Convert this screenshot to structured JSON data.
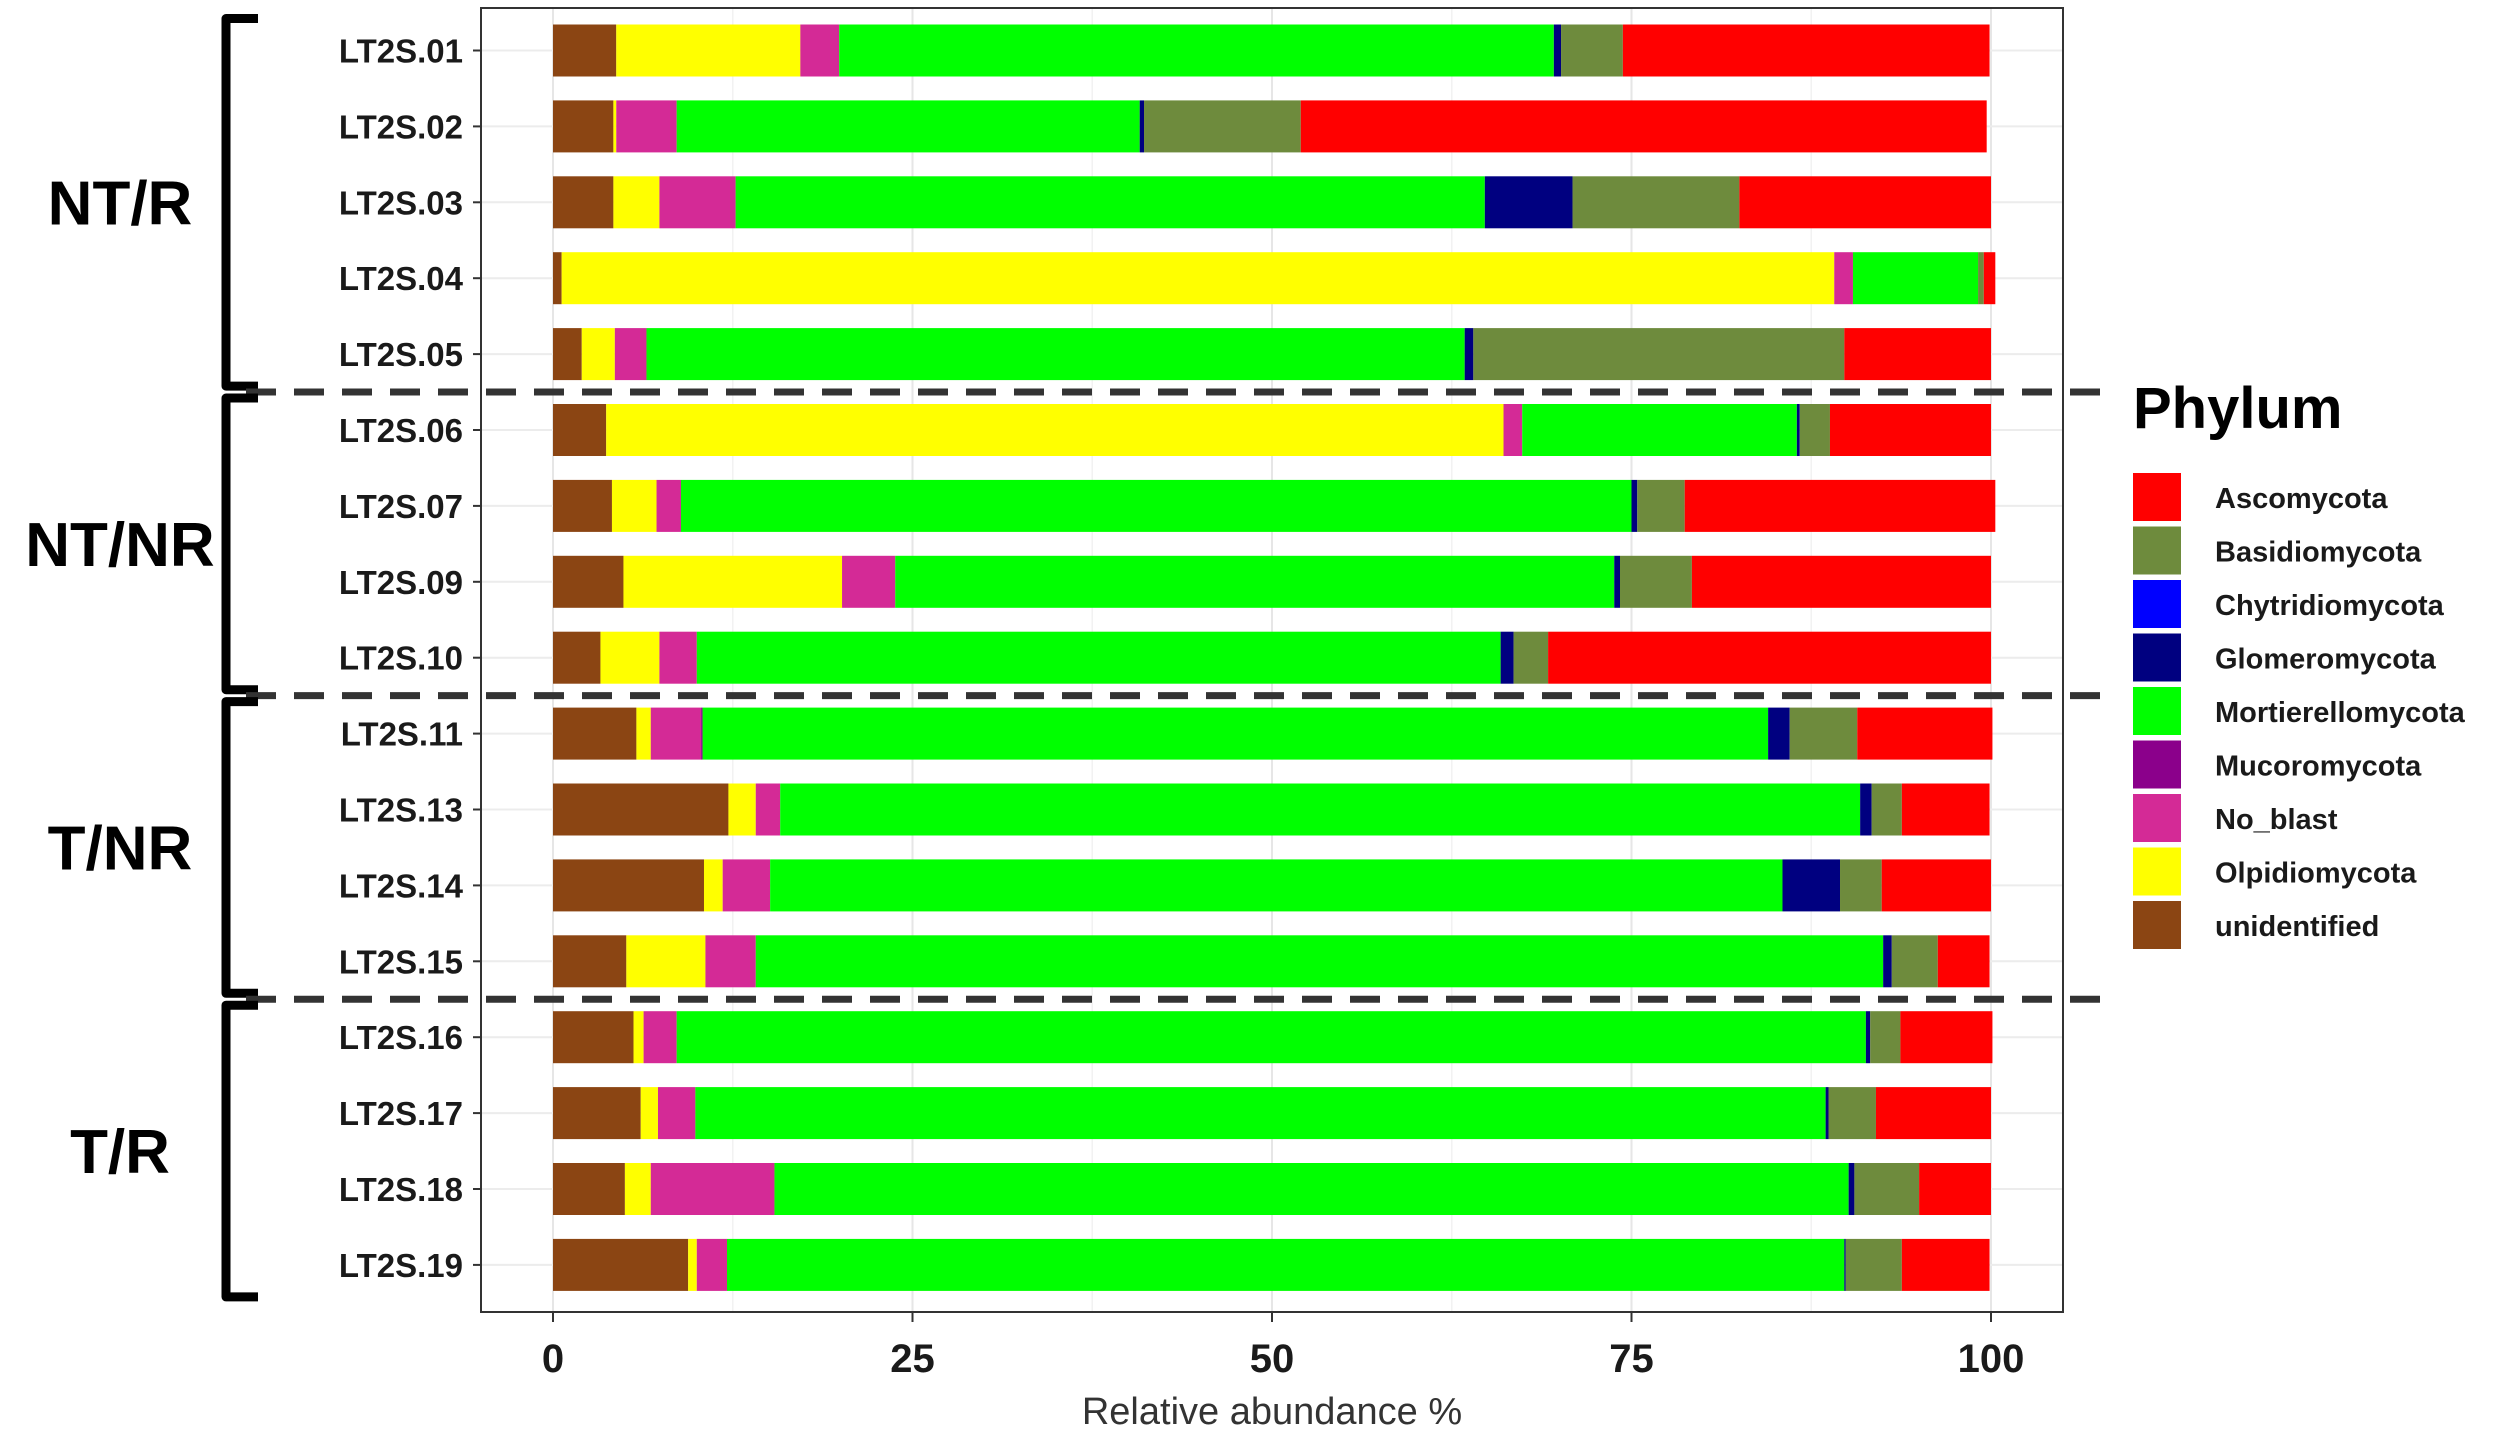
{
  "chart_data": {
    "type": "bar",
    "orientation": "horizontal",
    "stacked": true,
    "title": "",
    "xlabel": "Relative abundance %",
    "ylabel": "",
    "xlim": [
      0,
      100
    ],
    "xticks": [
      "0",
      "25",
      "50",
      "75",
      "100"
    ],
    "grid": true,
    "legend_position": "right",
    "legend_title": "Phylum",
    "categories": [
      "LT2S.01",
      "LT2S.02",
      "LT2S.03",
      "LT2S.04",
      "LT2S.05",
      "LT2S.06",
      "LT2S.07",
      "LT2S.09",
      "LT2S.10",
      "LT2S.11",
      "LT2S.13",
      "LT2S.14",
      "LT2S.15",
      "LT2S.16",
      "LT2S.17",
      "LT2S.18",
      "LT2S.19"
    ],
    "groups": [
      {
        "label": "NT/R",
        "members": [
          "LT2S.01",
          "LT2S.02",
          "LT2S.03",
          "LT2S.04",
          "LT2S.05"
        ]
      },
      {
        "label": "NT/NR",
        "members": [
          "LT2S.06",
          "LT2S.07",
          "LT2S.09",
          "LT2S.10"
        ]
      },
      {
        "label": "T/NR",
        "members": [
          "LT2S.11",
          "LT2S.13",
          "LT2S.14",
          "LT2S.15"
        ]
      },
      {
        "label": "T/R",
        "members": [
          "LT2S.16",
          "LT2S.17",
          "LT2S.18",
          "LT2S.19"
        ]
      }
    ],
    "stack_order": [
      "unidentified",
      "Olpidiomycota",
      "No_blast",
      "Mucoromycota",
      "Mortierellomycota",
      "Glomeromycota",
      "Chytridiomycota",
      "Basidiomycota",
      "Ascomycota"
    ],
    "legend_order": [
      "Ascomycota",
      "Basidiomycota",
      "Chytridiomycota",
      "Glomeromycota",
      "Mortierellomycota",
      "Mucoromycota",
      "No_blast",
      "Olpidiomycota",
      "unidentified"
    ],
    "colors": {
      "Ascomycota": "#FF0000",
      "Basidiomycota": "#6E8B3D",
      "Chytridiomycota": "#0000FF",
      "Glomeromycota": "#000080",
      "Mortierellomycota": "#00FF00",
      "Mucoromycota": "#8B008B",
      "No_blast": "#D42A96",
      "Olpidiomycota": "#FFFF00",
      "unidentified": "#8B4513"
    },
    "series": [
      {
        "name": "unidentified",
        "values": [
          4.4,
          4.2,
          4.2,
          0.6,
          2.0,
          3.7,
          4.1,
          4.9,
          3.3,
          5.8,
          12.2,
          10.5,
          5.1,
          5.6,
          6.1,
          5.0,
          9.4
        ]
      },
      {
        "name": "Olpidiomycota",
        "values": [
          12.8,
          0.2,
          3.2,
          88.5,
          2.3,
          62.4,
          3.1,
          15.2,
          4.1,
          1.0,
          1.9,
          1.3,
          5.5,
          0.7,
          1.2,
          1.8,
          0.6
        ]
      },
      {
        "name": "No_blast",
        "values": [
          2.7,
          4.2,
          5.3,
          1.3,
          2.2,
          1.3,
          1.7,
          3.7,
          2.6,
          3.5,
          1.7,
          3.3,
          3.5,
          2.3,
          2.6,
          8.6,
          2.1
        ]
      },
      {
        "name": "Mucoromycota",
        "values": [
          0,
          0,
          0,
          0,
          0,
          0,
          0,
          0,
          0,
          0.1,
          0,
          0,
          0,
          0,
          0,
          0,
          0
        ]
      },
      {
        "name": "Mortierellomycota",
        "values": [
          49.7,
          32.2,
          52.1,
          8.7,
          56.9,
          19.1,
          66.1,
          50.0,
          55.9,
          74.1,
          75.1,
          70.4,
          78.4,
          82.7,
          78.6,
          74.7,
          77.7
        ]
      },
      {
        "name": "Glomeromycota",
        "values": [
          0.5,
          0.3,
          6.1,
          0,
          0.6,
          0.2,
          0.4,
          0.4,
          0.9,
          1.5,
          0.8,
          4.0,
          0.6,
          0.3,
          0.2,
          0.4,
          0.1
        ]
      },
      {
        "name": "Chytridiomycota",
        "values": [
          0,
          0,
          0,
          0,
          0,
          0,
          0,
          0,
          0,
          0,
          0,
          0,
          0,
          0,
          0,
          0,
          0
        ]
      },
      {
        "name": "Basidiomycota",
        "values": [
          4.3,
          10.9,
          11.6,
          0.4,
          25.8,
          2.1,
          3.3,
          5.0,
          2.4,
          4.7,
          2.1,
          2.9,
          3.2,
          2.1,
          3.3,
          4.5,
          3.9
        ]
      },
      {
        "name": "Ascomycota",
        "values": [
          25.5,
          47.7,
          17.5,
          0.8,
          10.2,
          11.2,
          21.6,
          20.8,
          30.8,
          9.4,
          6.1,
          7.6,
          3.6,
          6.4,
          8.0,
          5.0,
          6.1
        ]
      }
    ]
  }
}
